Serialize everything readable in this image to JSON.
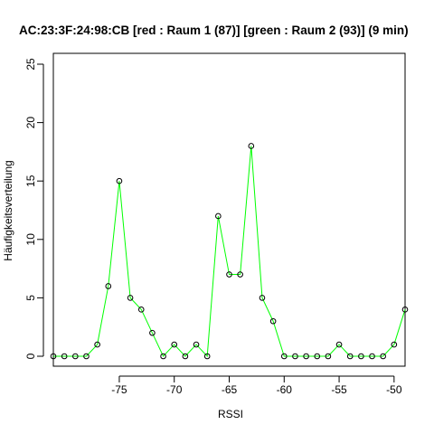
{
  "chart_data": {
    "type": "line",
    "title": "AC:23:3F:24:98:CB [red : Raum 1 (87)] [green : Raum 2 (93)] (9 min)",
    "xlabel": "RSSI",
    "ylabel": "Häufigkeitsverteilung",
    "xlim": [
      -81,
      -49
    ],
    "ylim": [
      0,
      25
    ],
    "x_ticks": [
      -75,
      -70,
      -65,
      -60,
      -55,
      -50
    ],
    "y_ticks": [
      0,
      5,
      10,
      15,
      20,
      25
    ],
    "grid": false,
    "series": [
      {
        "color": "#00ff00",
        "x": [
          -81,
          -80,
          -79,
          -78,
          -77,
          -76,
          -75,
          -74,
          -73,
          -72,
          -71,
          -70,
          -69,
          -68,
          -67,
          -66,
          -65,
          -64,
          -63,
          -62,
          -61,
          -60,
          -59,
          -58,
          -57,
          -56,
          -55,
          -54,
          -53,
          -52,
          -51,
          -50,
          -49
        ],
        "y": [
          0,
          0,
          0,
          0,
          1,
          6,
          15,
          5,
          4,
          2,
          0,
          1,
          0,
          1,
          0,
          12,
          7,
          7,
          18,
          5,
          3,
          0,
          0,
          0,
          0,
          0,
          1,
          0,
          0,
          0,
          0,
          1,
          4
        ]
      }
    ]
  }
}
